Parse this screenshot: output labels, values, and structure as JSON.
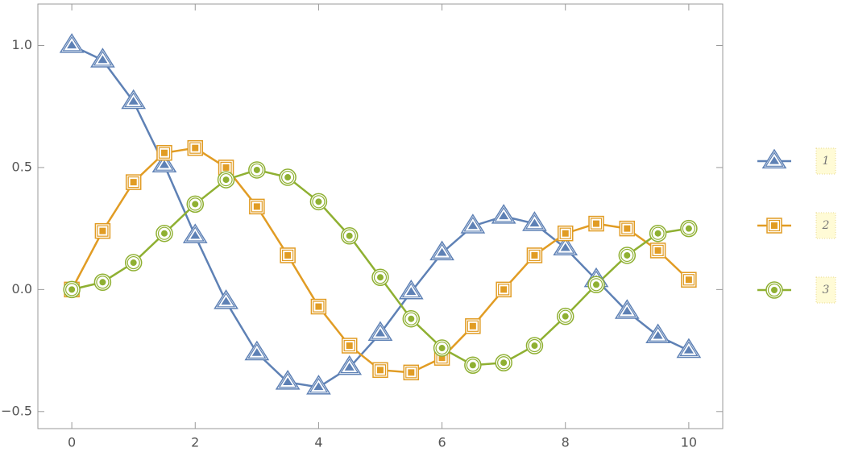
{
  "chart_data": {
    "type": "line",
    "x": [
      0,
      0.5,
      1,
      1.5,
      2,
      2.5,
      3,
      3.5,
      4,
      4.5,
      5,
      5.5,
      6,
      6.5,
      7,
      7.5,
      8,
      8.5,
      9,
      9.5,
      10
    ],
    "series": [
      {
        "name": "1",
        "color": "#5e81b5",
        "marker": "triangle",
        "values": [
          1.0,
          0.94,
          0.77,
          0.51,
          0.22,
          -0.05,
          -0.26,
          -0.38,
          -0.4,
          -0.32,
          -0.18,
          -0.01,
          0.15,
          0.26,
          0.3,
          0.27,
          0.17,
          0.04,
          -0.09,
          -0.19,
          -0.25
        ]
      },
      {
        "name": "2",
        "color": "#e19c24",
        "marker": "square",
        "values": [
          0.0,
          0.24,
          0.44,
          0.56,
          0.58,
          0.5,
          0.34,
          0.14,
          -0.07,
          -0.23,
          -0.33,
          -0.34,
          -0.28,
          -0.15,
          0.0,
          0.14,
          0.23,
          0.27,
          0.25,
          0.16,
          0.04
        ]
      },
      {
        "name": "3",
        "color": "#8fb032",
        "marker": "circle",
        "values": [
          0.0,
          0.03,
          0.11,
          0.23,
          0.35,
          0.45,
          0.49,
          0.46,
          0.36,
          0.22,
          0.05,
          -0.12,
          -0.24,
          -0.31,
          -0.3,
          -0.23,
          -0.11,
          0.02,
          0.14,
          0.23,
          0.25
        ]
      }
    ],
    "xlim": [
      -0.55,
      10.55
    ],
    "ylim": [
      -0.57,
      1.17
    ],
    "xticks": [
      0,
      2,
      4,
      6,
      8,
      10
    ],
    "yticks": [
      {
        "value": -0.5,
        "label": "−0.5"
      },
      {
        "value": 0,
        "label": "0.0"
      },
      {
        "value": 0.5,
        "label": "0.5"
      },
      {
        "value": 1,
        "label": "1.0"
      }
    ],
    "legend": "right"
  }
}
